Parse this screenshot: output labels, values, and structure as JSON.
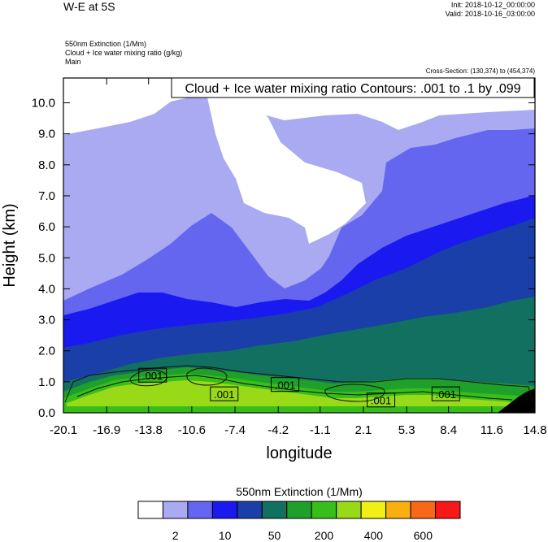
{
  "header": {
    "title": "W-E at 5S",
    "init": "Init: 2018-10-12_00:00:00",
    "valid": "Valid: 2018-10-16_03:00:00",
    "field1": "550nm Extinction   (1/Mm)",
    "field2": "Cloud + Ice water mixing ratio   (g/kg)",
    "field3": "Main",
    "cross_section": "Cross-Section: (130,374) to (454,374)"
  },
  "chart_data": {
    "type": "heatmap",
    "title": "W-E at 5S",
    "xlabel": "longitude",
    "ylabel": "Height (km)",
    "xlim": [
      -20.1,
      14.8
    ],
    "ylim": [
      0.0,
      10.8
    ],
    "x_ticks": [
      "-20.1",
      "-16.9",
      "-13.8",
      "-10.6",
      "-7.4",
      "-4.2",
      "-1.1",
      "2.1",
      "5.3",
      "8.4",
      "11.6",
      "14.8"
    ],
    "y_ticks": [
      "0.0",
      "1.0",
      "2.0",
      "3.0",
      "4.0",
      "5.0",
      "6.0",
      "7.0",
      "8.0",
      "9.0",
      "10.0"
    ],
    "contour_info": "Cloud + Ice water mixing ratio Contours: .001 to .1 by .099",
    "contour_labels": [
      {
        "text": ".001",
        "x": -13.5,
        "y": 1.2
      },
      {
        "text": ".001",
        "x": -8.2,
        "y": 0.6
      },
      {
        "text": ".001",
        "x": -3.7,
        "y": 0.9
      },
      {
        "text": ".001",
        "x": 3.4,
        "y": 0.4
      },
      {
        "text": ".001",
        "x": 8.2,
        "y": 0.6
      }
    ],
    "colorbar": {
      "title": "550nm Extinction  (1/Mm)",
      "colors": [
        "#ffffff",
        "#a9aaf2",
        "#6466f0",
        "#1a1af0",
        "#1a3fa8",
        "#127060",
        "#1ea02a",
        "#38be1a",
        "#98da18",
        "#f0f018",
        "#f8b010",
        "#f86818",
        "#f81818"
      ],
      "labels": [
        {
          "text": "2",
          "index": 1
        },
        {
          "text": "10",
          "index": 3
        },
        {
          "text": "50",
          "index": 5
        },
        {
          "text": "200",
          "index": 7
        },
        {
          "text": "400",
          "index": 9
        },
        {
          "text": "600",
          "index": 11
        }
      ]
    }
  }
}
